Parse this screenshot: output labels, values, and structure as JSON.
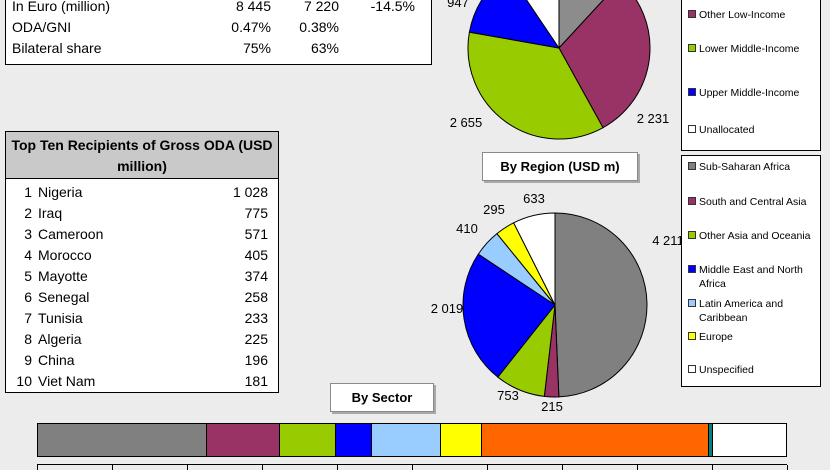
{
  "stats": {
    "rows": [
      {
        "label": "In Euro (million)",
        "v1": "8 445",
        "v2": "7 220",
        "change": "-14.5%"
      },
      {
        "label": "ODA/GNI",
        "v1": "0.47%",
        "v2": "0.38%",
        "change": ""
      },
      {
        "label": "Bilateral share",
        "v1": "75%",
        "v2": "63%",
        "change": ""
      }
    ]
  },
  "topten": {
    "title": "Top Ten Recipients of Gross ODA (USD million)",
    "rows": [
      {
        "rank": "1",
        "country": "Nigeria",
        "value": "1 028"
      },
      {
        "rank": "2",
        "country": "Iraq",
        "value": "775"
      },
      {
        "rank": "3",
        "country": "Cameroon",
        "value": "571"
      },
      {
        "rank": "4",
        "country": "Morocco",
        "value": "405"
      },
      {
        "rank": "5",
        "country": "Mayotte",
        "value": "374"
      },
      {
        "rank": "6",
        "country": "Senegal",
        "value": "258"
      },
      {
        "rank": "7",
        "country": "Tunisia",
        "value": "233"
      },
      {
        "rank": "8",
        "country": "Algeria",
        "value": "225"
      },
      {
        "rank": "9",
        "country": "China",
        "value": "196"
      },
      {
        "rank": "10",
        "country": "Viet Nam",
        "value": "181"
      }
    ]
  },
  "chart_data": [
    {
      "type": "pie",
      "title": "",
      "legend_position": "right",
      "slices": [
        {
          "name": "",
          "value": 880,
          "label": "",
          "color": "#8c8c8c"
        },
        {
          "name": "Other Low-Income",
          "value": 2231,
          "label": "2 231",
          "color": "#993366"
        },
        {
          "name": "Lower Middle-Income",
          "value": 2655,
          "label": "2 655",
          "color": "#99cc00"
        },
        {
          "name": "Upper Middle-Income",
          "value": 947,
          "label": "947",
          "color": "#0000ff"
        },
        {
          "name": "Unallocated",
          "value": 700,
          "label": "",
          "color": "#ffffff"
        }
      ]
    },
    {
      "type": "pie",
      "title": "By Region (USD m)",
      "legend_position": "right",
      "slices": [
        {
          "name": "Sub-Saharan Africa",
          "value": 4211,
          "label": "4 211",
          "color": "#808080"
        },
        {
          "name": "South and Central Asia",
          "value": 215,
          "label": "215",
          "color": "#993366"
        },
        {
          "name": "Other Asia and Oceania",
          "value": 753,
          "label": "753",
          "color": "#99cc00"
        },
        {
          "name": "Middle East and North Africa",
          "value": 2019,
          "label": "2 019",
          "color": "#0000ff"
        },
        {
          "name": "Latin America and Caribbean",
          "value": 410,
          "label": "410",
          "color": "#99ccff"
        },
        {
          "name": "Europe",
          "value": 295,
          "label": "295",
          "color": "#ffff00"
        },
        {
          "name": "Unspecified",
          "value": 633,
          "label": "633",
          "color": "#ffffff"
        }
      ]
    },
    {
      "type": "bar",
      "stacked": true,
      "orientation": "horizontal",
      "title": "By Sector",
      "segments": [
        {
          "value": 0.226,
          "color": "#808080"
        },
        {
          "value": 0.097,
          "color": "#993366"
        },
        {
          "value": 0.075,
          "color": "#99cc00"
        },
        {
          "value": 0.048,
          "color": "#0000ff"
        },
        {
          "value": 0.093,
          "color": "#99ccff"
        },
        {
          "value": 0.054,
          "color": "#ffff00"
        },
        {
          "value": 0.304,
          "color": "#ff6600"
        },
        {
          "value": 0.005,
          "color": "#008080"
        },
        {
          "value": 0.098,
          "color": "#ffffff"
        }
      ],
      "xlim": [
        0,
        1
      ]
    }
  ]
}
